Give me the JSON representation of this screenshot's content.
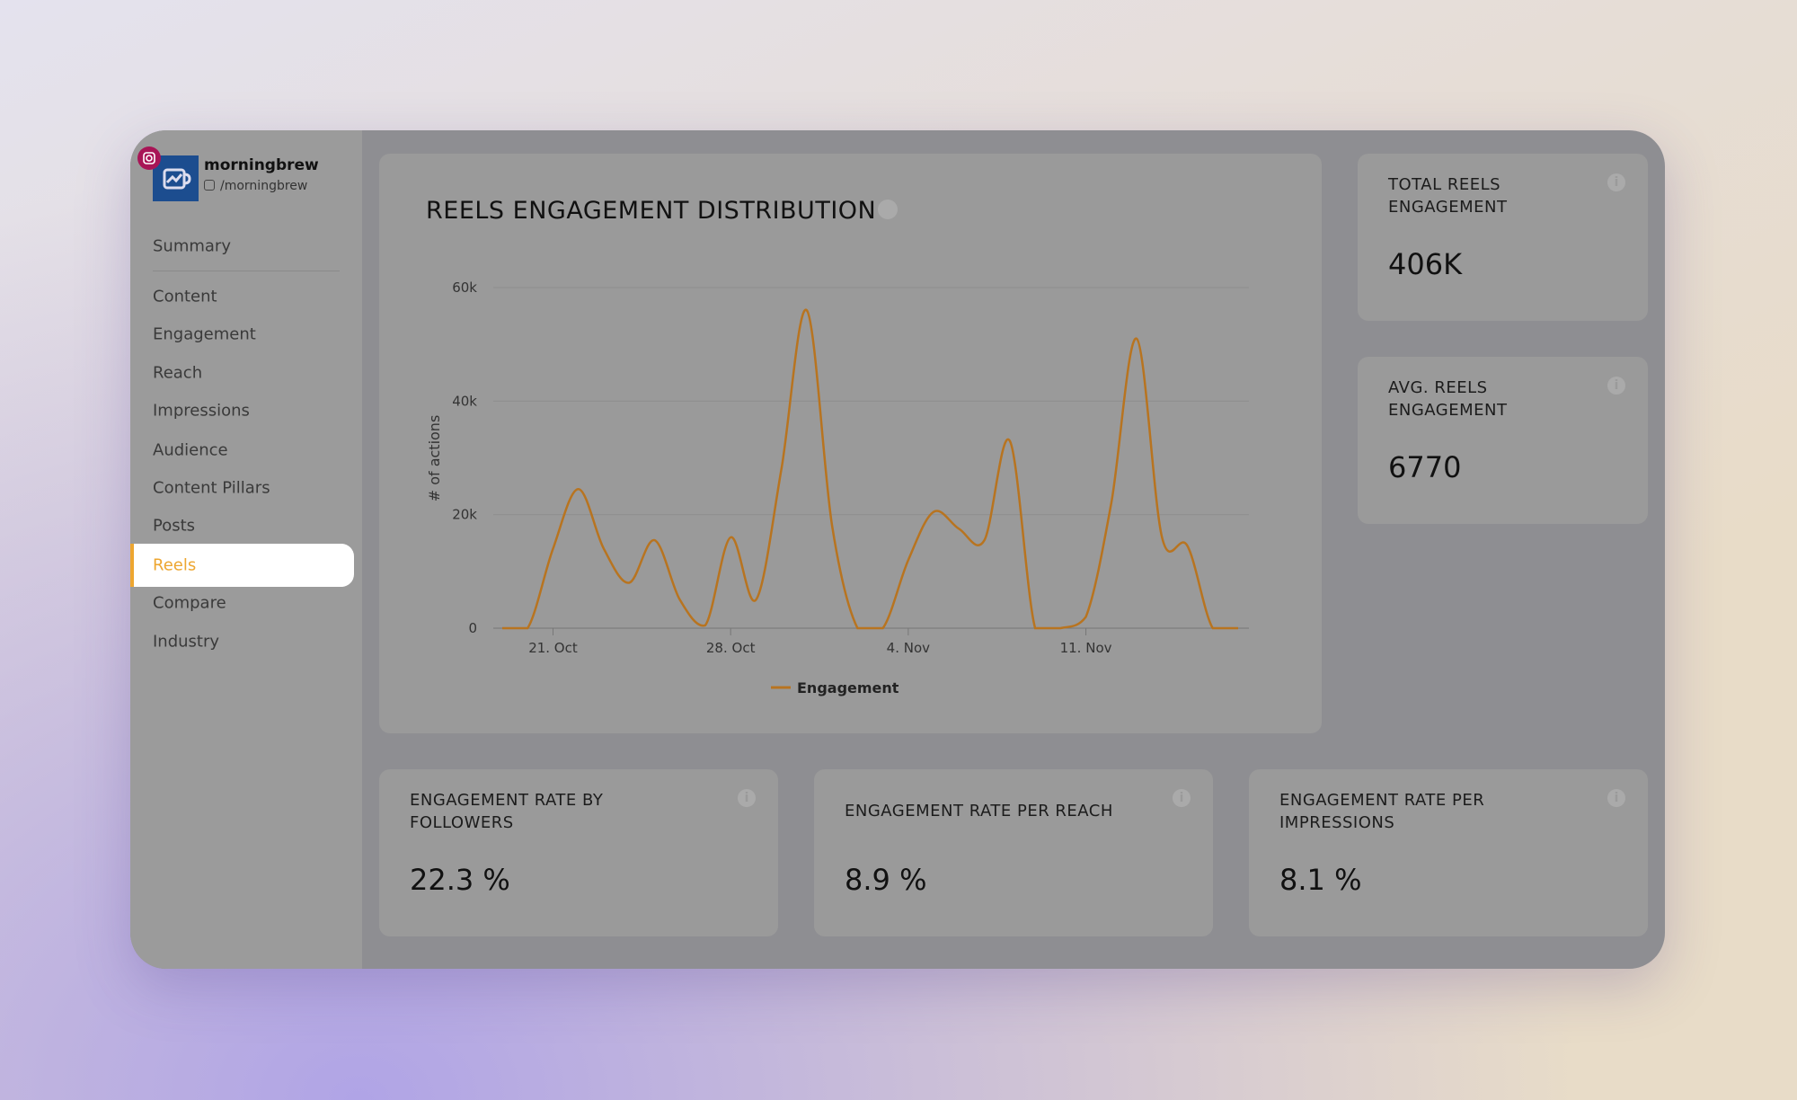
{
  "profile": {
    "name": "morningbrew",
    "handle": "/morningbrew"
  },
  "nav": {
    "items": [
      "Summary",
      "Content",
      "Engagement",
      "Reach",
      "Impressions",
      "Audience",
      "Content Pillars",
      "Posts",
      "Reels",
      "Compare",
      "Industry"
    ],
    "active": 8
  },
  "chart_data": {
    "type": "line",
    "title": "REELS ENGAGEMENT DISTRIBUTION",
    "y_label": "# of actions",
    "categories": [
      null,
      null,
      "21. Oct",
      null,
      null,
      null,
      null,
      null,
      null,
      "28. Oct",
      null,
      null,
      null,
      null,
      null,
      null,
      "4. Nov",
      null,
      null,
      null,
      null,
      null,
      null,
      "11. Nov",
      null,
      null,
      null,
      null,
      null,
      null
    ],
    "series": [
      {
        "name": "Engagement",
        "color": "#b87420",
        "values": [
          0,
          0,
          14000,
          24500,
          14000,
          8000,
          15500,
          5000,
          500,
          16000,
          5000,
          28000,
          56000,
          18000,
          0,
          0,
          12000,
          20500,
          17500,
          15500,
          33000,
          0,
          0,
          2000,
          22000,
          51000,
          16000,
          14500,
          0,
          0
        ]
      }
    ],
    "ylim": [
      0,
      60000
    ],
    "yticks": [
      {
        "value": 0,
        "label": "0"
      },
      {
        "value": 20000,
        "label": "20k"
      },
      {
        "value": 40000,
        "label": "40k"
      },
      {
        "value": 60000,
        "label": "60k"
      }
    ],
    "grid": true
  },
  "stats": [
    {
      "label": "TOTAL REELS ENGAGEMENT",
      "value": "406K"
    },
    {
      "label": "AVG. REELS ENGAGEMENT",
      "value": "6770"
    }
  ],
  "rates": [
    {
      "label": "ENGAGEMENT RATE BY FOLLOWERS",
      "value": "22.3 %"
    },
    {
      "label": "ENGAGEMENT RATE PER REACH",
      "value": "8.9 %"
    },
    {
      "label": "ENGAGEMENT RATE PER IMPRESSIONS",
      "value": "8.1 %"
    }
  ]
}
